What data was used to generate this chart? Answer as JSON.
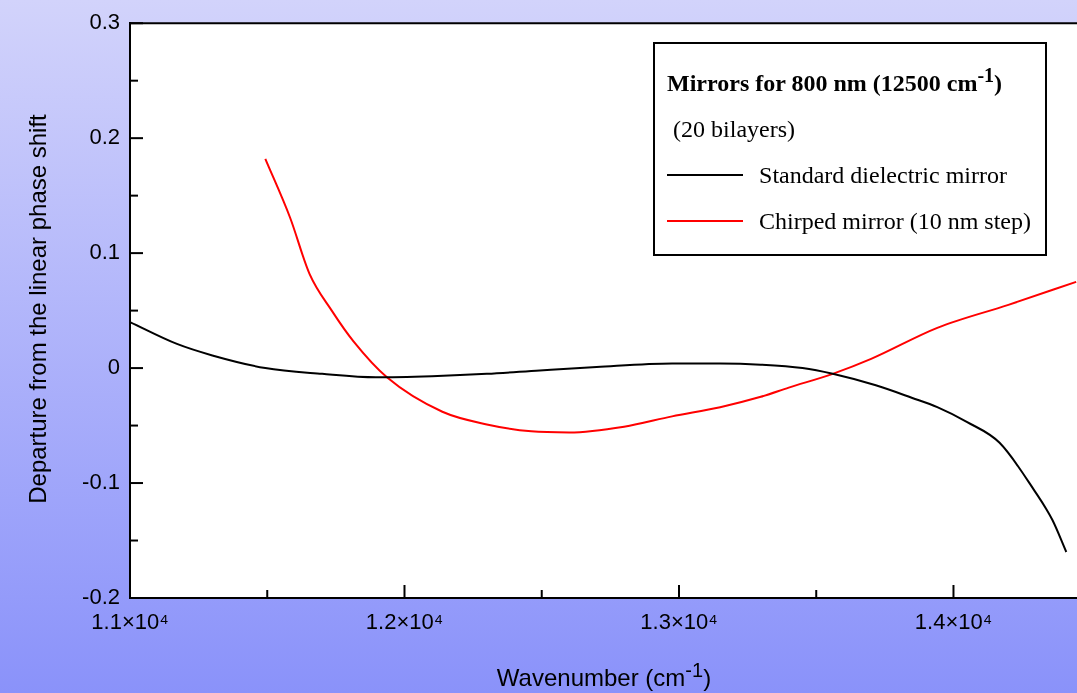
{
  "chart_data": {
    "type": "line",
    "xlabel": "Wavenumber (cm$^{-1}$)",
    "ylabel": "Departure from the linear phase shift",
    "legend_title": "Mirrors for 800 nm (12500 cm$^{-1}$)",
    "annotations": [
      "(20 bilayers)"
    ],
    "xlim": [
      11000,
      14450
    ],
    "xticks": [
      {
        "value": 11000,
        "label": "1.1×10⁴"
      },
      {
        "value": 11500,
        "label": null
      },
      {
        "value": 12000,
        "label": "1.2×10⁴"
      },
      {
        "value": 12500,
        "label": null
      },
      {
        "value": 13000,
        "label": "1.3×10⁴"
      },
      {
        "value": 13500,
        "label": null
      },
      {
        "value": 14000,
        "label": "1.4×10⁴"
      }
    ],
    "ylim": [
      -0.2,
      0.3
    ],
    "yticks": [
      -0.2,
      {
        "value": -0.15,
        "label": null
      },
      -0.1,
      {
        "value": -0.05,
        "label": null
      },
      0,
      {
        "value": 0.05,
        "label": null
      },
      0.1,
      {
        "value": 0.15,
        "label": null
      },
      0.2,
      {
        "value": 0.25,
        "label": null
      },
      0.3
    ],
    "grid": false,
    "legend": "top right",
    "marker": "none",
    "line_style": "solid",
    "series": [
      {
        "name": "Standard dielectric mirror",
        "color": "#000000",
        "x": [
          11000,
          11171,
          11300,
          11493,
          11700,
          11896,
          12100,
          12300,
          12493,
          12700,
          12975,
          13150,
          13298,
          13450,
          13560,
          13717,
          13850,
          13941,
          14050,
          14168,
          14296,
          14360,
          14411
        ],
        "values": [
          0.04,
          0.021,
          0.011,
          0.0,
          -0.005,
          -0.008,
          -0.007,
          -0.005,
          -0.002,
          0.001,
          0.004,
          0.004,
          0.003,
          0.0,
          -0.005,
          -0.015,
          -0.026,
          -0.034,
          -0.047,
          -0.065,
          -0.107,
          -0.132,
          -0.16
        ]
      },
      {
        "name": "Chirped mirror (10 nm step)",
        "color": "#ff0000",
        "x": [
          11493,
          11583,
          11654,
          11735,
          11815,
          11936,
          12138,
          12300,
          12462,
          12600,
          12800,
          12975,
          13150,
          13298,
          13400,
          13560,
          13700,
          13941,
          14200,
          14447
        ],
        "values": [
          0.182,
          0.131,
          0.082,
          0.05,
          0.023,
          -0.008,
          -0.038,
          -0.049,
          -0.055,
          -0.056,
          -0.051,
          -0.042,
          -0.034,
          -0.025,
          -0.017,
          -0.005,
          0.008,
          0.035,
          0.055,
          0.075
        ]
      }
    ]
  }
}
